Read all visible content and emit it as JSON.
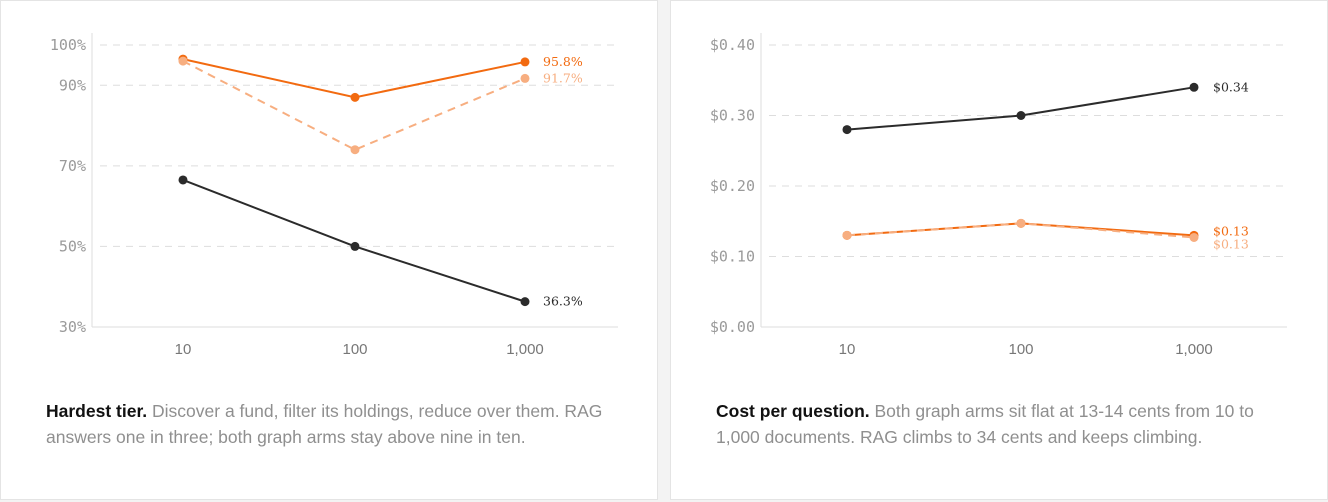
{
  "colors": {
    "rag": "#2b2b2b",
    "graph_a": "#f26a10",
    "graph_b": "#f7ae80",
    "grid": "#dddddd"
  },
  "chart_data": [
    {
      "type": "line",
      "x": [
        "10",
        "100",
        "1,000"
      ],
      "yticks": [
        "100%",
        "90%",
        "70%",
        "50%",
        "30%"
      ],
      "ylim": [
        30,
        100
      ],
      "ytick_values": [
        100,
        90,
        70,
        50,
        30
      ],
      "grid": true,
      "series": [
        {
          "key": "graph_a",
          "values": [
            96.5,
            87,
            95.8
          ],
          "style": "solid",
          "label": "95.8%"
        },
        {
          "key": "graph_b",
          "values": [
            96,
            74,
            91.7
          ],
          "style": "dashed",
          "label": "91.7%"
        },
        {
          "key": "rag",
          "values": [
            66.5,
            50,
            36.3
          ],
          "style": "solid",
          "label": "36.3%"
        }
      ]
    },
    {
      "type": "line",
      "x": [
        "10",
        "100",
        "1,000"
      ],
      "yticks": [
        "$0.40",
        "$0.30",
        "$0.20",
        "$0.10",
        "$0.00"
      ],
      "ylim": [
        0,
        0.4
      ],
      "ytick_values": [
        0.4,
        0.3,
        0.2,
        0.1,
        0
      ],
      "grid": true,
      "series": [
        {
          "key": "rag",
          "values": [
            0.28,
            0.3,
            0.34
          ],
          "style": "solid",
          "label": "$0.34"
        },
        {
          "key": "graph_a",
          "values": [
            0.13,
            0.147,
            0.13
          ],
          "style": "solid",
          "label": "$0.13"
        },
        {
          "key": "graph_b",
          "values": [
            0.13,
            0.147,
            0.127
          ],
          "style": "dashed",
          "label": "$0.13"
        }
      ]
    }
  ],
  "captions": [
    {
      "bold": "Hardest tier.",
      "text": " Discover a fund, filter its holdings, reduce over them. RAG answers one in three; both graph arms stay above nine in ten."
    },
    {
      "bold": "Cost per question.",
      "text": " Both graph arms sit flat at 13-14 cents from 10 to 1,000 documents. RAG climbs to 34 cents and keeps climbing."
    }
  ]
}
